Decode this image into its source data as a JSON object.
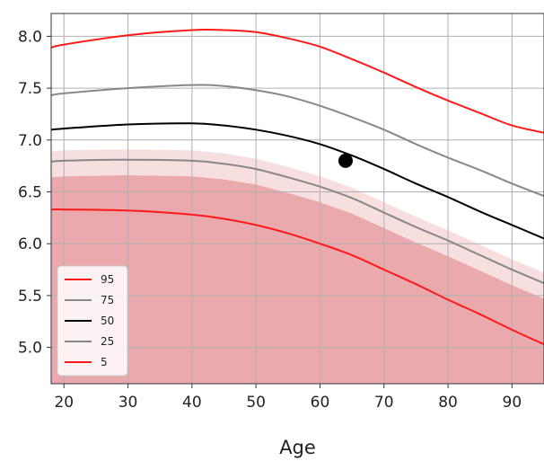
{
  "chart_data": {
    "type": "line",
    "title": "",
    "xlabel": "Age",
    "ylabel": "",
    "xlim": [
      18,
      95
    ],
    "ylim": [
      4.65,
      8.22
    ],
    "xticks": [
      20,
      30,
      40,
      50,
      60,
      70,
      80,
      90
    ],
    "yticks": [
      5.0,
      5.5,
      6.0,
      6.5,
      7.0,
      7.5,
      8.0
    ],
    "xtick_labels": [
      "20",
      "30",
      "40",
      "50",
      "60",
      "70",
      "80",
      "90"
    ],
    "ytick_labels": [
      "5.0",
      "5.5",
      "6.0",
      "6.5",
      "7.0",
      "7.5",
      "8.0"
    ],
    "grid": true,
    "legend_position": "lower-left",
    "shading": {
      "color": "#e8a0a4",
      "note_below_percentile": 5
    },
    "series": [
      {
        "name": "95",
        "color": "#ff1a1a",
        "x": [
          18,
          20,
          30,
          40,
          45,
          50,
          55,
          60,
          65,
          70,
          75,
          80,
          85,
          90,
          95
        ],
        "y": [
          7.89,
          7.92,
          8.01,
          8.06,
          8.06,
          8.04,
          7.98,
          7.9,
          7.78,
          7.65,
          7.51,
          7.38,
          7.26,
          7.14,
          7.07
        ]
      },
      {
        "name": "75",
        "color": "#888888",
        "x": [
          18,
          20,
          30,
          40,
          45,
          50,
          55,
          60,
          65,
          70,
          75,
          80,
          85,
          90,
          95
        ],
        "y": [
          7.43,
          7.45,
          7.5,
          7.53,
          7.52,
          7.48,
          7.42,
          7.33,
          7.22,
          7.1,
          6.96,
          6.83,
          6.71,
          6.58,
          6.46
        ]
      },
      {
        "name": "50",
        "color": "#000000",
        "x": [
          18,
          20,
          30,
          40,
          45,
          50,
          55,
          60,
          65,
          70,
          75,
          80,
          85,
          90,
          95
        ],
        "y": [
          7.1,
          7.11,
          7.15,
          7.16,
          7.14,
          7.1,
          7.04,
          6.96,
          6.85,
          6.72,
          6.58,
          6.45,
          6.31,
          6.18,
          6.05
        ]
      },
      {
        "name": "25",
        "color": "#888888",
        "x": [
          18,
          20,
          30,
          40,
          45,
          50,
          55,
          60,
          65,
          70,
          75,
          80,
          85,
          90,
          95
        ],
        "y": [
          6.79,
          6.8,
          6.81,
          6.8,
          6.77,
          6.72,
          6.64,
          6.55,
          6.44,
          6.3,
          6.16,
          6.03,
          5.89,
          5.75,
          5.62
        ]
      },
      {
        "name": "5",
        "color": "#ff1a1a",
        "x": [
          18,
          20,
          30,
          40,
          45,
          50,
          55,
          60,
          65,
          70,
          75,
          80,
          85,
          90,
          95
        ],
        "y": [
          6.33,
          6.33,
          6.32,
          6.28,
          6.24,
          6.18,
          6.1,
          6.0,
          5.89,
          5.75,
          5.61,
          5.46,
          5.32,
          5.17,
          5.03
        ]
      }
    ],
    "marker": {
      "x": 64,
      "y": 6.8,
      "color": "#000000"
    }
  }
}
